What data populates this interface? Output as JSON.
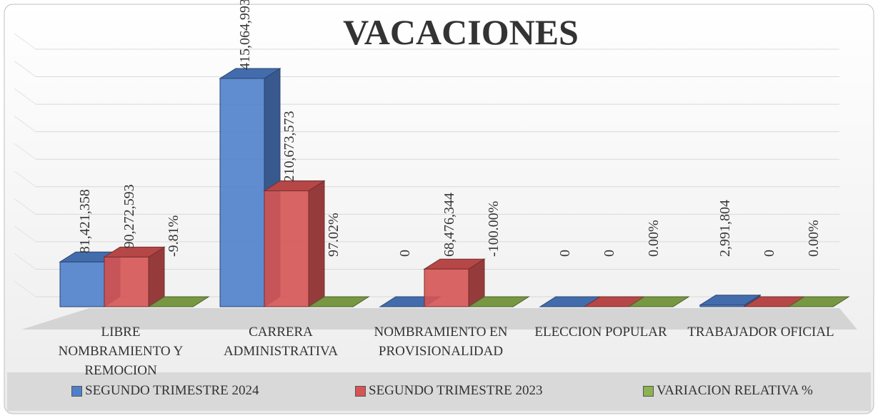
{
  "chart_data": {
    "type": "bar3d",
    "title": "VACACIONES",
    "categories": [
      "LIBRE NOMBRAMIENTO Y REMOCION",
      "CARRERA ADMINISTRATIVA",
      "NOMBRAMIENTO EN PROVISIONALIDAD",
      "ELECCION POPULAR",
      "TRABAJADOR OFICIAL"
    ],
    "series": [
      {
        "name": "SEGUNDO TRIMESTRE 2024",
        "color": "#4f7fcb",
        "values": [
          81421358,
          415064993,
          0,
          0,
          2991804
        ],
        "value_labels": [
          "81,421,358",
          "415,064,993",
          "0",
          "0",
          "2,991,804"
        ]
      },
      {
        "name": "SEGUNDO TRIMESTRE 2023",
        "color": "#d65454",
        "values": [
          90272593,
          210673573,
          68476344,
          0,
          0
        ],
        "value_labels": [
          "90,272,593",
          "210,673,573",
          "68,476,344",
          "0",
          "0"
        ]
      },
      {
        "name": "VARIACION RELATIVA %",
        "color": "#8db24f",
        "values": [
          -9.81,
          97.02,
          -100.0,
          0.0,
          0.0
        ],
        "value_labels": [
          "-9.81%",
          "97.02%",
          "-100.00%",
          "0.00%",
          "0.00%"
        ]
      }
    ],
    "ylim": [
      0,
      450000000
    ],
    "yticks": [
      0,
      50000000,
      100000000,
      150000000,
      200000000,
      250000000,
      300000000,
      350000000,
      400000000,
      450000000
    ],
    "grid": true
  }
}
